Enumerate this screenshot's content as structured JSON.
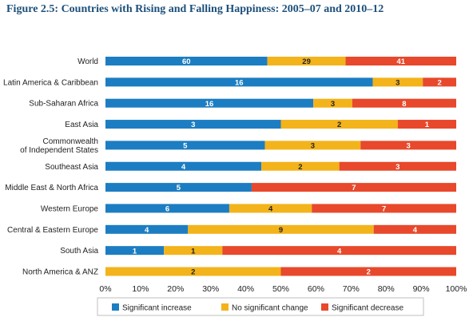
{
  "figure_title": "Figure 2.5: Countries with Rising and Falling Happiness: 2005–07 and 2010–12",
  "colors": {
    "increase": "#1c7dc2",
    "no_change": "#f3b31b",
    "decrease": "#e8482b"
  },
  "chart_data": {
    "type": "bar",
    "orientation": "horizontal",
    "stacked": "percent",
    "title": "",
    "xlabel": "",
    "ylabel": "",
    "xlim": [
      0,
      100
    ],
    "x_tick_labels": [
      "0%",
      "10%",
      "20%",
      "30%",
      "40%",
      "50%",
      "60%",
      "70%",
      "80%",
      "90%",
      "100%"
    ],
    "grid": false,
    "legend_position": "bottom",
    "categories": [
      "World",
      "Latin America & Caribbean",
      "Sub-Saharan Africa",
      "East Asia",
      "Commonwealth of Independent States",
      "Southeast Asia",
      "Middle East & North Africa",
      "Western Europe",
      "Central & Eastern Europe",
      "South Asia",
      "North America & ANZ"
    ],
    "category_label_lines": [
      [
        "World"
      ],
      [
        "Latin America & Caribbean"
      ],
      [
        "Sub-Saharan Africa"
      ],
      [
        "East Asia"
      ],
      [
        "Commonwealth",
        "of Independent States"
      ],
      [
        "Southeast Asia"
      ],
      [
        "Middle East & North Africa"
      ],
      [
        "Western Europe"
      ],
      [
        "Central & Eastern Europe"
      ],
      [
        "South Asia"
      ],
      [
        "North America & ANZ"
      ]
    ],
    "series": [
      {
        "name": "Significant increase",
        "values": [
          60,
          16,
          16,
          3,
          5,
          4,
          5,
          6,
          4,
          1,
          0
        ]
      },
      {
        "name": "No significant change",
        "values": [
          29,
          3,
          3,
          2,
          3,
          2,
          0,
          4,
          9,
          1,
          2
        ]
      },
      {
        "name": "Significant decrease",
        "values": [
          41,
          2,
          8,
          1,
          3,
          3,
          7,
          7,
          4,
          4,
          2
        ]
      }
    ]
  }
}
